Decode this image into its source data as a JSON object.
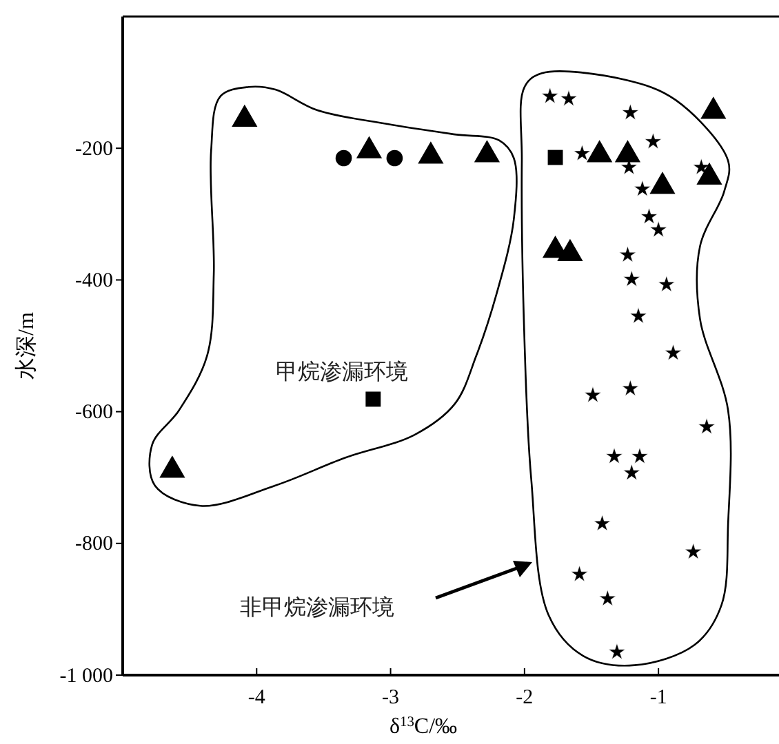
{
  "chart_data": {
    "type": "scatter",
    "xlabel": "δ$^{13}$C/‰",
    "ylabel": "水深/m",
    "annotations": [
      "甲烷渗漏环境",
      "非甲烷渗漏环境"
    ],
    "xlim": [
      -5,
      -0.1
    ],
    "ylim": [
      -1000,
      0
    ],
    "xticks": [
      -4,
      -3,
      -2,
      -1
    ],
    "yticks": [
      -200,
      -400,
      -600,
      -800,
      {
        "value": -1000,
        "label": "-1 000"
      }
    ],
    "grid": false,
    "series": [
      {
        "marker": "triangle",
        "color": "#000000",
        "x": [
          -4.09,
          -3.16,
          -2.7,
          -2.28,
          -4.63,
          -0.59,
          -1.44,
          -1.23,
          -0.97,
          -0.62,
          -1.77,
          -1.66
        ],
        "values": [
          -156,
          -204,
          -212,
          -210,
          -689,
          -144,
          -210,
          -210,
          -258,
          -244,
          -355,
          -360
        ]
      },
      {
        "marker": "circle",
        "color": "#000000",
        "x": [
          -3.35,
          -2.97
        ],
        "values": [
          -215,
          -215
        ]
      },
      {
        "marker": "square",
        "color": "#000000",
        "x": [
          -3.13,
          -1.77
        ],
        "values": [
          -581,
          -214
        ]
      },
      {
        "marker": "star",
        "color": "#000000",
        "x": [
          -1.81,
          -1.67,
          -1.21,
          -1.04,
          -1.57,
          -1.22,
          -1.12,
          -1.07,
          -1.0,
          -1.23,
          -1.2,
          -0.94,
          -1.15,
          -0.89,
          -1.21,
          -1.49,
          -0.64,
          -1.33,
          -1.14,
          -1.2,
          -1.42,
          -0.74,
          -1.59,
          -1.38,
          -1.31,
          -0.68
        ],
        "values": [
          -121,
          -125,
          -146,
          -190,
          -208,
          -229,
          -262,
          -304,
          -324,
          -362,
          -399,
          -407,
          -455,
          -511,
          -565,
          -575,
          -623,
          -668,
          -668,
          -693,
          -770,
          -813,
          -847,
          -884,
          -965,
          -229
        ]
      }
    ]
  }
}
